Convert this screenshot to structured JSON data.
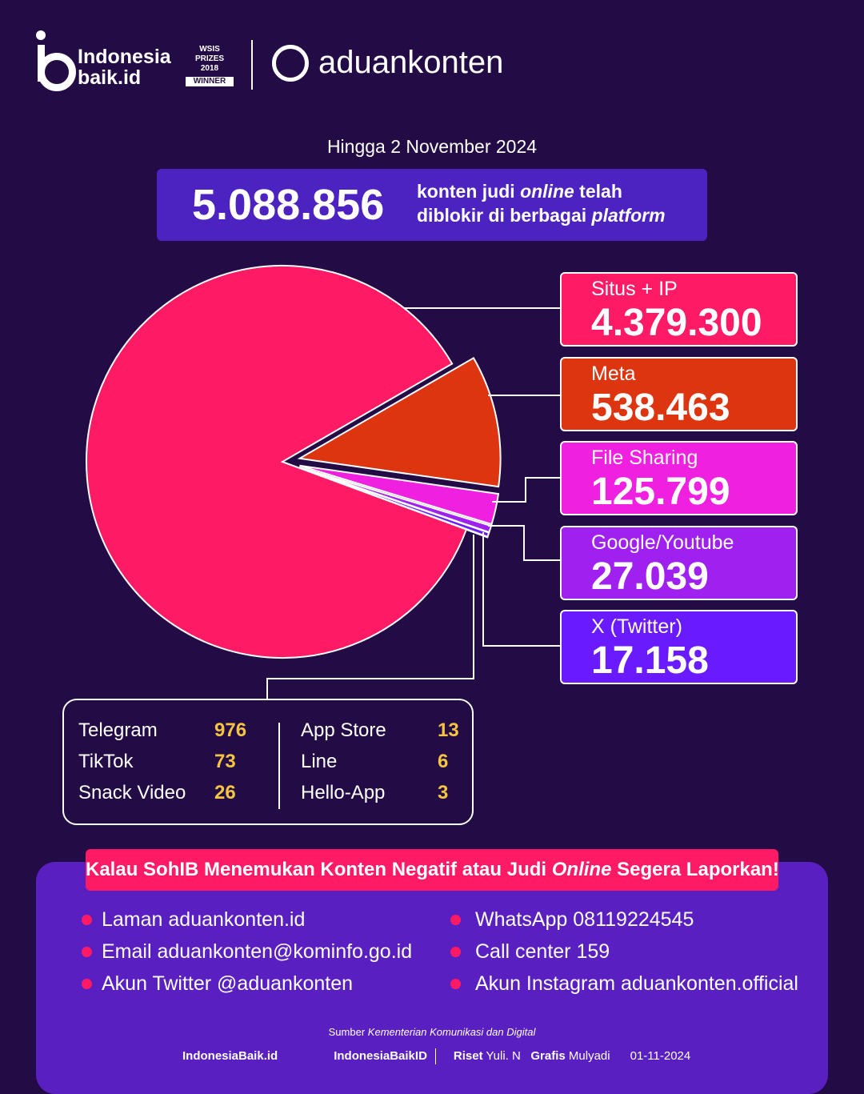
{
  "header": {
    "brand_line1": "Indonesia",
    "brand_line2": "baik.id",
    "award_line1": "WSIS PRIZES 2018",
    "award_line2": "WINNER",
    "partner": "aduankonten"
  },
  "subtitle": "Hingga 2 November 2024",
  "headline": {
    "total": "5.088.856",
    "text": [
      "konten judi ",
      "online",
      " telah",
      "diblokir di berbagai ",
      "platform"
    ]
  },
  "chart_data": {
    "type": "pie",
    "categories": [
      "Situs + IP",
      "Meta",
      "File Sharing",
      "Google/Youtube",
      "X (Twitter)",
      "Telegram",
      "TikTok",
      "Snack Video",
      "App Store",
      "Line",
      "Hello-App"
    ],
    "values": [
      4379300,
      538463,
      125799,
      27039,
      17158,
      976,
      73,
      26,
      13,
      6,
      3
    ],
    "value_labels": [
      "4.379.300",
      "538.463",
      "125.799",
      "27.039",
      "17.158",
      "976",
      "73",
      "26",
      "13",
      "6",
      "3"
    ],
    "colors": [
      "#ff1a66",
      "#dc3510",
      "#f020e0",
      "#a020f0",
      "#6a1aff",
      "#3c2ad0",
      "#3c2ad0",
      "#3c2ad0",
      "#3c2ad0",
      "#3c2ad0",
      "#3c2ad0"
    ]
  },
  "banner": [
    "Kalau SohIB Menemukan Konten Negatif atau Judi ",
    "Online",
    " Segera Laporkan!"
  ],
  "contacts": [
    "Laman aduankonten.id",
    "Email aduankonten@kominfo.go.id",
    "Akun Twitter @aduankonten",
    "WhatsApp 08119224545",
    "Call center 159",
    "Akun Instagram aduankonten.official"
  ],
  "footer": {
    "source_label": "Sumber",
    "source": "Kementerian Komunikasi dan Digital",
    "handle1": "IndonesiaBaik.id",
    "handle2": "IndonesiaBaikID",
    "research_label": "Riset",
    "research": "Yuli. N",
    "graphics_label": "Grafis",
    "graphics": "Mulyadi",
    "date": "01-11-2024"
  }
}
